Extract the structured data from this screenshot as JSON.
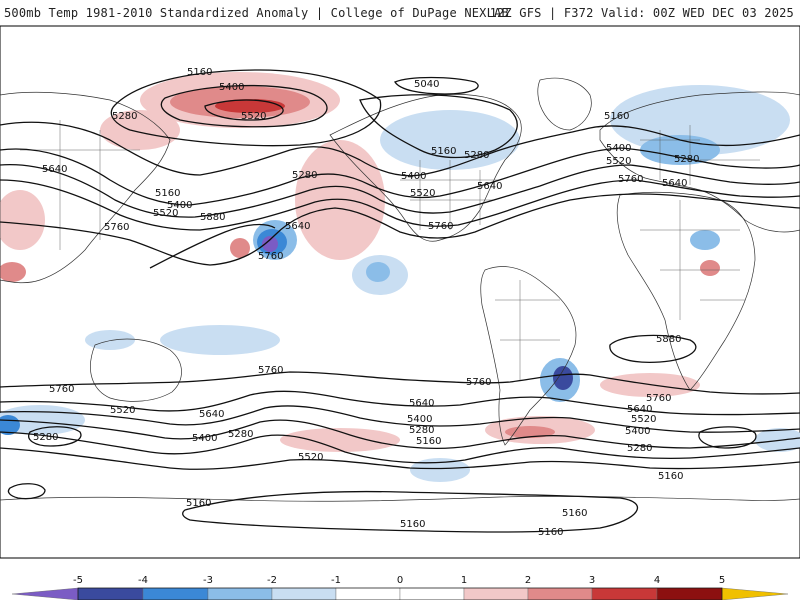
{
  "header": {
    "title": "500mb Temp 1981-2010 Standardized Anomaly | College of DuPage NEXLAB",
    "run_info": "12Z GFS | F372 Valid: 00Z WED DEC 03 2025"
  },
  "map": {
    "field": "500mb temperature standardized anomaly",
    "contour_field": "500mb geopotential height (m)",
    "contour_labels": [
      {
        "id": "c5160-np",
        "value": "5160"
      },
      {
        "id": "c5400-ak",
        "value": "5400"
      },
      {
        "id": "c5520-ak",
        "value": "5520"
      },
      {
        "id": "c5280-ak",
        "value": "5280"
      },
      {
        "id": "c5040-ca",
        "value": "5040"
      },
      {
        "id": "c5160-gr",
        "value": "5160"
      },
      {
        "id": "c5160-hb",
        "value": "5160"
      },
      {
        "id": "c5280-hb",
        "value": "5280"
      },
      {
        "id": "c5400-na",
        "value": "5400"
      },
      {
        "id": "c5520-na",
        "value": "5520"
      },
      {
        "id": "c5640-na",
        "value": "5640"
      },
      {
        "id": "c5760-na",
        "value": "5760"
      },
      {
        "id": "c5280-np",
        "value": "5280"
      },
      {
        "id": "c5640-np",
        "value": "5640"
      },
      {
        "id": "c5760-np",
        "value": "5760"
      },
      {
        "id": "c5880-np",
        "value": "5880"
      },
      {
        "id": "c5640-jp",
        "value": "5640"
      },
      {
        "id": "c5160-jp",
        "value": "5160"
      },
      {
        "id": "c5400-jp",
        "value": "5400"
      },
      {
        "id": "c5520-jp",
        "value": "5520"
      },
      {
        "id": "c5760-as",
        "value": "5760"
      },
      {
        "id": "c5400-eu",
        "value": "5400"
      },
      {
        "id": "c5520-eu",
        "value": "5520"
      },
      {
        "id": "c5640-eu",
        "value": "5640"
      },
      {
        "id": "c5760-eu",
        "value": "5760"
      },
      {
        "id": "c5280-eu",
        "value": "5280"
      },
      {
        "id": "c5880-af",
        "value": "5880"
      },
      {
        "id": "c5760-sp",
        "value": "5760"
      },
      {
        "id": "c5760-sa",
        "value": "5760"
      },
      {
        "id": "c5760-wi",
        "value": "5760"
      },
      {
        "id": "c5520-wi",
        "value": "5520"
      },
      {
        "id": "c5280-wi",
        "value": "5280"
      },
      {
        "id": "c5640-si",
        "value": "5640"
      },
      {
        "id": "c5400-si",
        "value": "5400"
      },
      {
        "id": "c5280-si",
        "value": "5280"
      },
      {
        "id": "c5520-sp",
        "value": "5520"
      },
      {
        "id": "c5640-sp",
        "value": "5640"
      },
      {
        "id": "c5400-sp",
        "value": "5400"
      },
      {
        "id": "c5280-sp",
        "value": "5280"
      },
      {
        "id": "c5160-sp",
        "value": "5160"
      },
      {
        "id": "c5640-ea",
        "value": "5640"
      },
      {
        "id": "c5520-ea",
        "value": "5520"
      },
      {
        "id": "c5400-ea",
        "value": "5400"
      },
      {
        "id": "c5280-ea",
        "value": "5280"
      },
      {
        "id": "c5760-ea",
        "value": "5760"
      },
      {
        "id": "c5160-ea",
        "value": "5160"
      },
      {
        "id": "c5160-an1",
        "value": "5160"
      },
      {
        "id": "c5160-an2",
        "value": "5160"
      },
      {
        "id": "c5160-an3",
        "value": "5160"
      },
      {
        "id": "c5160-an4",
        "value": "5160"
      }
    ]
  },
  "colorbar": {
    "tick_labels": [
      "-5",
      "-4",
      "-3",
      "-2",
      "-1",
      "0",
      "1",
      "2",
      "3",
      "4",
      "5"
    ],
    "colors": [
      "#7b5cc4",
      "#3a4a9e",
      "#3b88d6",
      "#8bbde8",
      "#c9def2",
      "#ffffff",
      "#ffffff",
      "#f2c8c8",
      "#e08a8a",
      "#c83838",
      "#8c1010",
      "#f0c000"
    ]
  }
}
